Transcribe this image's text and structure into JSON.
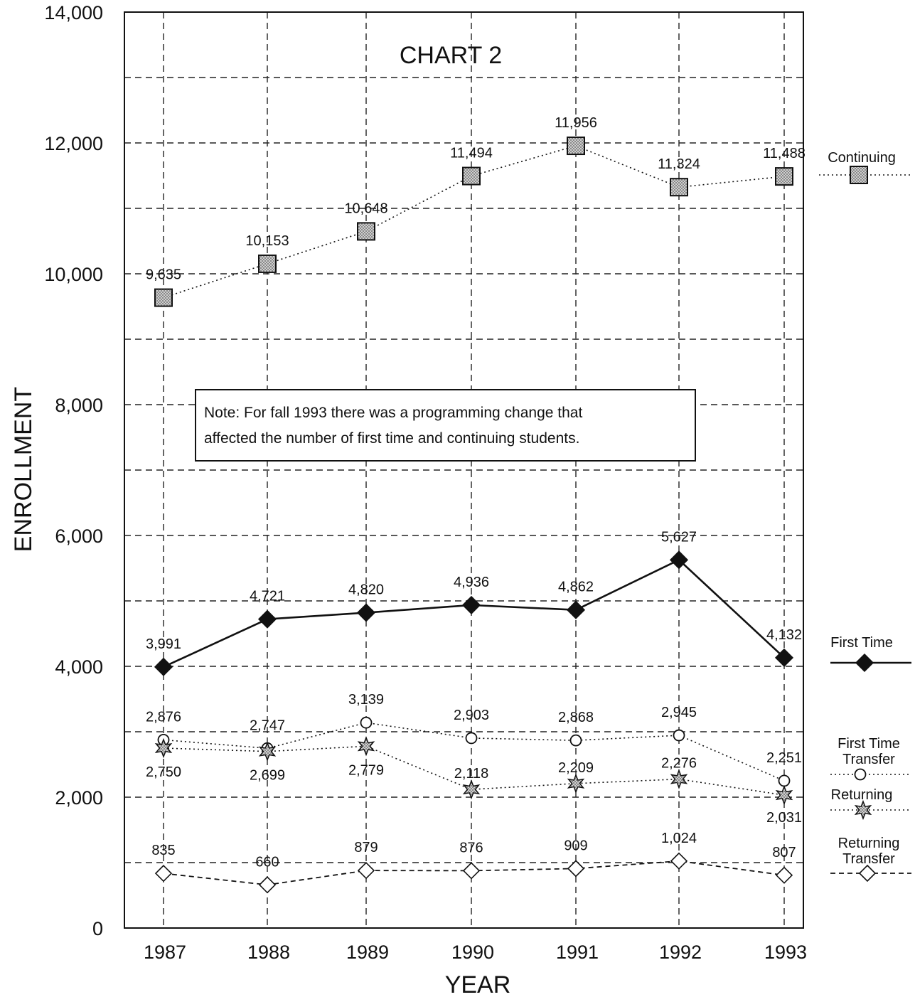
{
  "chart_data": {
    "type": "line",
    "title": "CHART 2",
    "xlabel": "YEAR",
    "ylabel": "ENROLLMENT",
    "categories": [
      "1987",
      "1988",
      "1989",
      "1990",
      "1991",
      "1992",
      "1993"
    ],
    "ylim": [
      0,
      14000
    ],
    "yticks": [
      0,
      2000,
      4000,
      6000,
      8000,
      10000,
      12000,
      14000
    ],
    "ytick_labels": [
      "0",
      "2,000",
      "4,000",
      "6,000",
      "8,000",
      "10,000",
      "12,000",
      "14,000"
    ],
    "grid": true,
    "legend_position": "right",
    "note": [
      "Note: For fall 1993 there was a programming change that",
      "affected the number of first time and continuing students."
    ],
    "series": [
      {
        "name": "Continuing",
        "marker": "square",
        "line": "dotted",
        "values": [
          9635,
          10153,
          10648,
          11494,
          11956,
          11324,
          11488
        ],
        "labels": [
          "9,635",
          "10,153",
          "10,648",
          "11,494",
          "11,956",
          "11,324",
          "11,488"
        ]
      },
      {
        "name": "First Time",
        "marker": "diamond-filled",
        "line": "solid",
        "values": [
          3991,
          4721,
          4820,
          4936,
          4862,
          5627,
          4132
        ],
        "labels": [
          "3,991",
          "4,721",
          "4,820",
          "4,936",
          "4,862",
          "5,627",
          "4,132"
        ]
      },
      {
        "name": "First Time Transfer",
        "legend_lines": [
          "First Time",
          "Transfer"
        ],
        "marker": "circle",
        "line": "dotted",
        "values": [
          2876,
          2747,
          3139,
          2903,
          2868,
          2945,
          2251
        ],
        "labels": [
          "2,876",
          "2,747",
          "3,139",
          "2,903",
          "2,868",
          "2,945",
          "2,251"
        ]
      },
      {
        "name": "Returning",
        "marker": "star",
        "line": "dotted",
        "values": [
          2750,
          2699,
          2779,
          2118,
          2209,
          2276,
          2031
        ],
        "labels": [
          "2,750",
          "2,699",
          "2,779",
          "2,118",
          "2,209",
          "2,276",
          "2,031"
        ]
      },
      {
        "name": "Returning Transfer",
        "legend_lines": [
          "Returning",
          "Transfer"
        ],
        "marker": "diamond-open",
        "line": "dashed",
        "values": [
          835,
          660,
          879,
          876,
          909,
          1024,
          807
        ],
        "labels": [
          "835",
          "660",
          "879",
          "876",
          "909",
          "1,024",
          "807"
        ]
      }
    ]
  }
}
